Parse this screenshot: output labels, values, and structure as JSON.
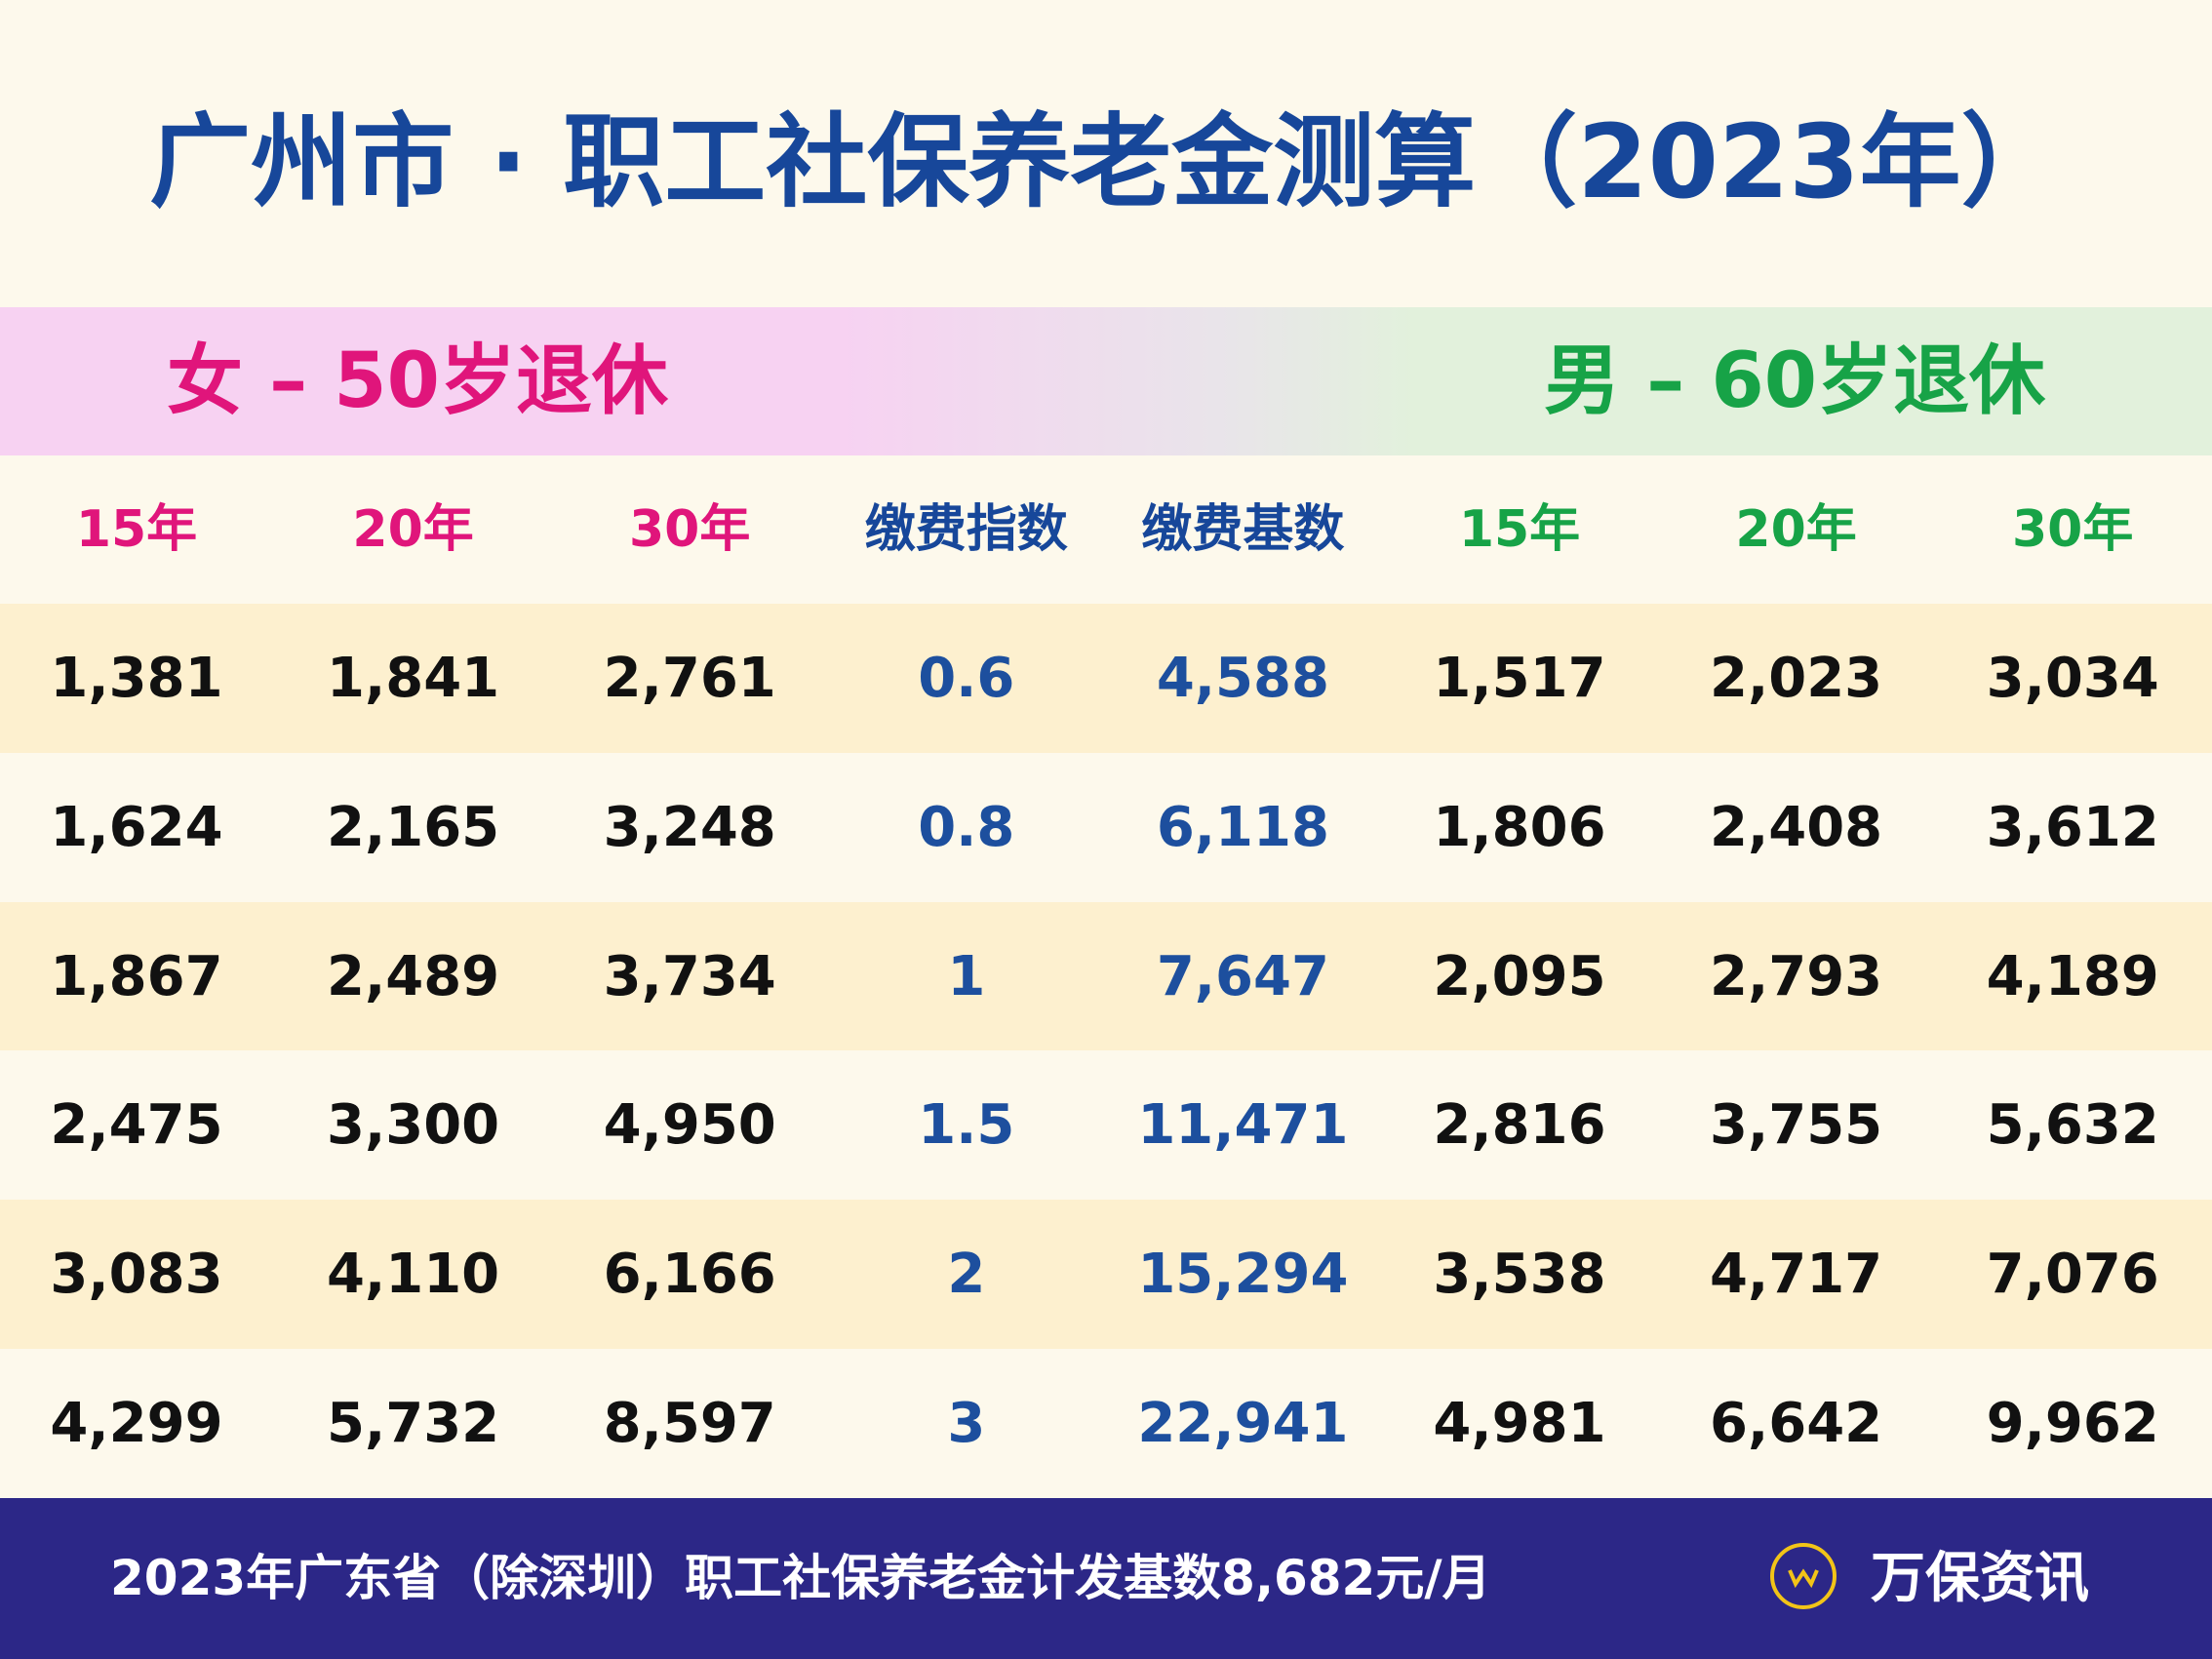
{
  "header": {
    "title": "广州市 · 职工社保养老金测算（2023年）"
  },
  "table": {
    "female_label": "女 – 50岁退休",
    "male_label": "男 – 60岁退休",
    "columns": [
      "15年",
      "20年",
      "30年",
      "缴费指数",
      "缴费基数",
      "15年",
      "20年",
      "30年"
    ],
    "rows": [
      [
        "1,381",
        "1,841",
        "2,761",
        "0.6",
        "4,588",
        "1,517",
        "2,023",
        "3,034"
      ],
      [
        "1,624",
        "2,165",
        "3,248",
        "0.8",
        "6,118",
        "1,806",
        "2,408",
        "3,612"
      ],
      [
        "1,867",
        "2,489",
        "3,734",
        "1",
        "7,647",
        "2,095",
        "2,793",
        "4,189"
      ],
      [
        "2,475",
        "3,300",
        "4,950",
        "1.5",
        "11,471",
        "2,816",
        "3,755",
        "5,632"
      ],
      [
        "3,083",
        "4,110",
        "6,166",
        "2",
        "15,294",
        "3,538",
        "4,717",
        "7,076"
      ],
      [
        "4,299",
        "5,732",
        "8,597",
        "3",
        "22,941",
        "4,981",
        "6,642",
        "9,962"
      ]
    ]
  },
  "footer": {
    "text": "2023年广东省（除深圳）职工社保养老金计发基数8,682元/月",
    "brand": "万保资讯"
  }
}
